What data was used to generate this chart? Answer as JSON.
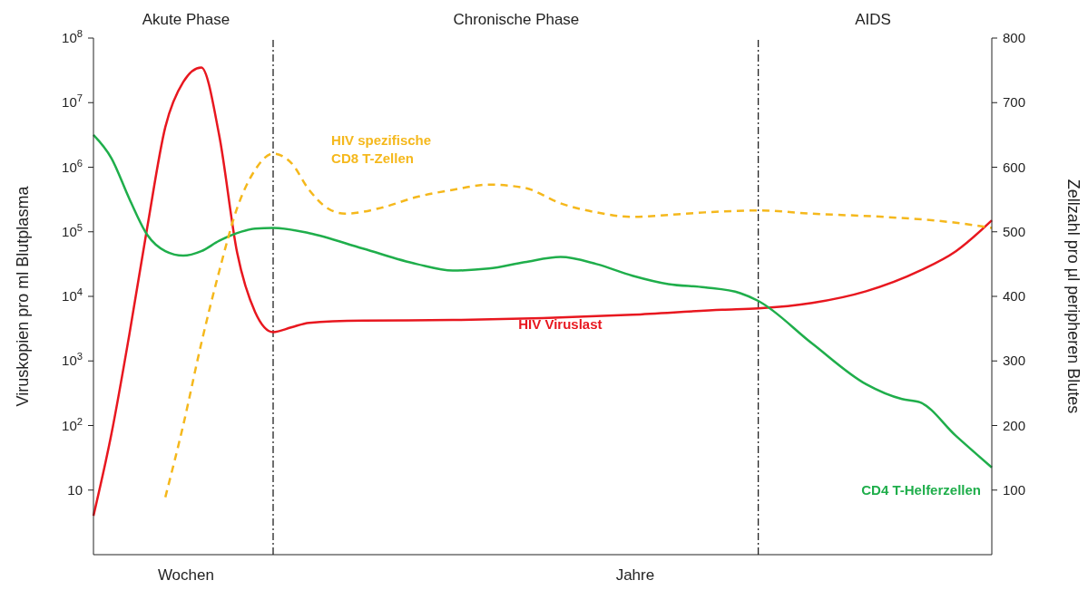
{
  "chart_data": {
    "type": "line",
    "ylabel": "Viruskopien pro ml Blutplasma",
    "y2label": "Zellzahl pro µl peripheren Blutes",
    "categories": [
      null,
      null,
      null,
      null,
      null,
      null,
      null,
      null,
      null,
      null,
      null,
      null,
      null,
      null,
      null,
      null,
      null,
      null,
      null,
      null,
      null,
      null,
      null,
      null,
      null,
      null,
      null,
      null,
      null,
      null,
      null,
      null,
      null,
      null,
      null,
      null,
      null,
      null,
      null,
      null,
      null,
      null,
      null,
      null,
      null,
      null,
      null,
      null,
      null,
      null,
      null
    ],
    "log": "y",
    "ylim": [
      1,
      100000000
    ],
    "yticks": [
      10,
      {
        "value": 100,
        "label": "10$^{2}$"
      },
      {
        "value": 1000,
        "label": "10$^{3}$"
      },
      {
        "value": 10000,
        "label": "10$^{4}$"
      },
      {
        "value": 100000,
        "label": "10$^{5}$"
      },
      {
        "value": 1000000,
        "label": "10$^{6}$"
      },
      {
        "value": 10000000,
        "label": "10$^{7}$"
      },
      {
        "value": 100000000,
        "label": "10$^{8}$"
      }
    ],
    "y2lim": [
      0,
      800
    ],
    "y2ticks": [
      100,
      200,
      300,
      400,
      500,
      600,
      700,
      800
    ],
    "marker": "none",
    "series": [
      {
        "name": "HIV Viruslast",
        "color": "#e8171f",
        "line_style": "solid",
        "values": [
          4,
          74,
          2600,
          120000,
          4200000,
          21000000,
          35000000,
          3100000,
          47000,
          5700,
          2800,
          3300,
          3900,
          null,
          null,
          4200,
          null,
          null,
          null,
          null,
          4300,
          null,
          null,
          null,
          null,
          4600,
          null,
          null,
          null,
          null,
          5200,
          null,
          null,
          null,
          null,
          6200,
          null,
          6500,
          null,
          null,
          7900,
          null,
          null,
          12000,
          null,
          null,
          25000,
          null,
          50000,
          null,
          150000
        ]
      },
      {
        "name": "CD4 T-Helferzellen",
        "color": "#1fae4b",
        "axis": "y2",
        "line_style": "solid",
        "values": [
          650,
          614,
          551,
          495,
          470,
          463,
          470,
          486,
          498,
          505,
          506,
          null,
          498,
          null,
          null,
          474,
          null,
          null,
          450,
          null,
          440,
          null,
          443,
          null,
          453,
          null,
          461,
          null,
          450,
          null,
          432,
          null,
          419,
          null,
          414,
          null,
          405,
          393,
          null,
          null,
          327,
          null,
          null,
          264,
          null,
          241,
          236,
          null,
          184,
          null,
          135
        ]
      },
      {
        "name": "HIV spezifische\nCD8 T-Zellen",
        "color": "#f5b81c",
        "axis": "y2",
        "line_style": "dashed",
        "values": [
          null,
          null,
          null,
          null,
          89,
          201,
          327,
          439,
          537,
          596,
          621,
          607,
          565,
          537,
          528,
          null,
          537,
          null,
          554,
          null,
          565,
          null,
          573,
          null,
          568,
          null,
          544,
          null,
          530,
          null,
          523,
          null,
          526,
          null,
          530,
          null,
          null,
          533,
          null,
          null,
          528,
          null,
          null,
          null,
          523,
          null,
          null,
          null,
          514,
          null,
          506
        ]
      }
    ],
    "annotations": [
      "Akute Phase",
      "Chronische Phase",
      "AIDS",
      "Wochen",
      "Jahre"
    ]
  }
}
